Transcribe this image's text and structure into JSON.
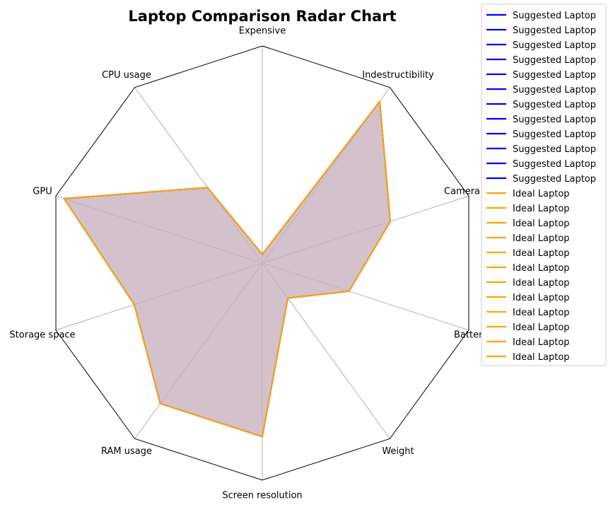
{
  "chart_data": {
    "type": "radar",
    "title": "Laptop Comparison Radar Chart",
    "axes": [
      "Expensive",
      "Indestructibility",
      "Camera Quality",
      "Battery Life",
      "Weight",
      "Screen resolution",
      "RAM usage",
      "Storage space",
      "GPU",
      "CPU usage"
    ],
    "rmax": 1.0,
    "grid": true,
    "legend_position": "outside-top-right",
    "series": [
      {
        "name": "Suggested Laptop",
        "color": "#0000ff",
        "values": [
          0.04,
          0.92,
          0.62,
          0.42,
          0.2,
          0.8,
          0.8,
          0.62,
          0.96,
          0.43
        ]
      },
      {
        "name": "Ideal Laptop",
        "color": "#ffa500",
        "values": [
          0.04,
          0.92,
          0.62,
          0.42,
          0.2,
          0.8,
          0.8,
          0.62,
          0.96,
          0.43
        ]
      }
    ],
    "fill_color": "#c9b3bf",
    "legend": {
      "entries": [
        {
          "name": "Suggested Laptop",
          "color": "#0000ff"
        },
        {
          "name": "Suggested Laptop",
          "color": "#0000ff"
        },
        {
          "name": "Suggested Laptop",
          "color": "#0000ff"
        },
        {
          "name": "Suggested Laptop",
          "color": "#0000ff"
        },
        {
          "name": "Suggested Laptop",
          "color": "#0000ff"
        },
        {
          "name": "Suggested Laptop",
          "color": "#0000ff"
        },
        {
          "name": "Suggested Laptop",
          "color": "#0000ff"
        },
        {
          "name": "Suggested Laptop",
          "color": "#0000ff"
        },
        {
          "name": "Suggested Laptop",
          "color": "#0000ff"
        },
        {
          "name": "Suggested Laptop",
          "color": "#0000ff"
        },
        {
          "name": "Suggested Laptop",
          "color": "#0000ff"
        },
        {
          "name": "Suggested Laptop",
          "color": "#0000ff"
        },
        {
          "name": "Ideal Laptop",
          "color": "#ffa500"
        },
        {
          "name": "Ideal Laptop",
          "color": "#ffa500"
        },
        {
          "name": "Ideal Laptop",
          "color": "#ffa500"
        },
        {
          "name": "Ideal Laptop",
          "color": "#ffa500"
        },
        {
          "name": "Ideal Laptop",
          "color": "#ffa500"
        },
        {
          "name": "Ideal Laptop",
          "color": "#ffa500"
        },
        {
          "name": "Ideal Laptop",
          "color": "#ffa500"
        },
        {
          "name": "Ideal Laptop",
          "color": "#ffa500"
        },
        {
          "name": "Ideal Laptop",
          "color": "#ffa500"
        },
        {
          "name": "Ideal Laptop",
          "color": "#ffa500"
        },
        {
          "name": "Ideal Laptop",
          "color": "#ffa500"
        },
        {
          "name": "Ideal Laptop",
          "color": "#ffa500"
        }
      ]
    }
  }
}
